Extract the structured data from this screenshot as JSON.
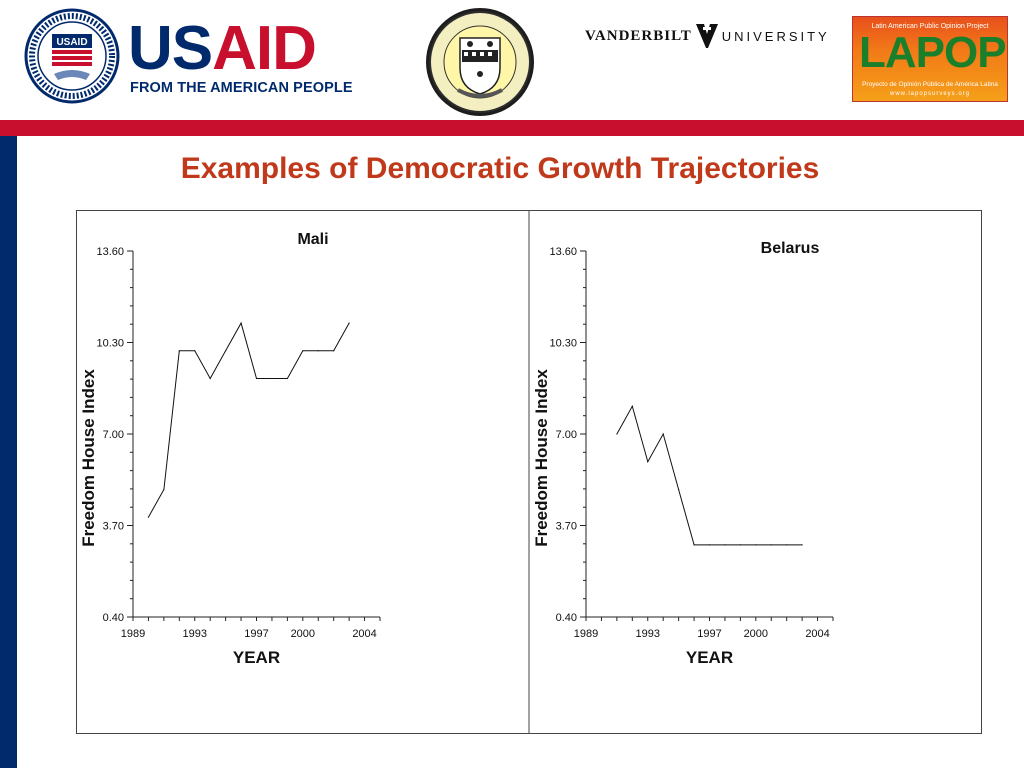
{
  "header": {
    "usaid": {
      "word_us": "US",
      "word_aid": "AID",
      "tagline": "FROM THE AMERICAN PEOPLE",
      "seal_icon": "usaid-seal-icon",
      "colors": {
        "blue": "#002a6c",
        "red": "#c8102e"
      }
    },
    "pitt": {
      "seal_icon": "pitt-seal-icon"
    },
    "vanderbilt": {
      "left": "VANDERBILT",
      "right": "UNIVERSITY",
      "v_icon": "vanderbilt-v-icon"
    },
    "lapop": {
      "top": "Latin American Public Opinion Project",
      "word": "LAPOP",
      "sub": "Proyecto de Opinión Pública de América Latina",
      "url": "www.lapopsurveys.org"
    }
  },
  "slide": {
    "title": "Examples of Democratic Growth Trajectories",
    "title_color": "#c0391b"
  },
  "chart_data": [
    {
      "type": "line",
      "title": "Mali",
      "xlabel": "YEAR",
      "ylabel": "Freedom House Index",
      "x_ticks": [
        1989,
        1993,
        1997,
        2000,
        2004
      ],
      "x_tick_labels": [
        "1989",
        "1993",
        "1997",
        "2000",
        "2004"
      ],
      "y_ticks": [
        0.4,
        3.7,
        7.0,
        10.3,
        13.6
      ],
      "y_tick_labels": [
        "0.40",
        "3.70",
        "7.00",
        "10.30",
        "13.60"
      ],
      "xlim": [
        1989,
        2005
      ],
      "ylim": [
        0.4,
        13.6
      ],
      "grid": false,
      "series": [
        {
          "x": [
            1990,
            1991,
            1992,
            1993,
            1994,
            1995,
            1996,
            1997,
            1998,
            1999,
            2000,
            2001,
            2002,
            2003
          ],
          "y": [
            4,
            5,
            10,
            10,
            9,
            10,
            11,
            9,
            9,
            9,
            10,
            10,
            10,
            11
          ]
        }
      ]
    },
    {
      "type": "line",
      "title": "Belarus",
      "xlabel": "YEAR",
      "ylabel": "Freedom House Index",
      "x_ticks": [
        1989,
        1993,
        1997,
        2000,
        2004
      ],
      "x_tick_labels": [
        "1989",
        "1993",
        "1997",
        "2000",
        "2004"
      ],
      "y_ticks": [
        0.4,
        3.7,
        7.0,
        10.3,
        13.6
      ],
      "y_tick_labels": [
        "0.40",
        "3.70",
        "7.00",
        "10.30",
        "13.60"
      ],
      "xlim": [
        1989,
        2005
      ],
      "ylim": [
        0.4,
        13.6
      ],
      "grid": false,
      "series": [
        {
          "x": [
            1991,
            1992,
            1993,
            1994,
            1995,
            1996,
            1997,
            1998,
            1999,
            2000,
            2001,
            2002,
            2003
          ],
          "y": [
            7,
            8,
            6,
            7,
            5,
            3,
            3,
            3,
            3,
            3,
            3,
            3,
            3
          ]
        }
      ]
    }
  ]
}
